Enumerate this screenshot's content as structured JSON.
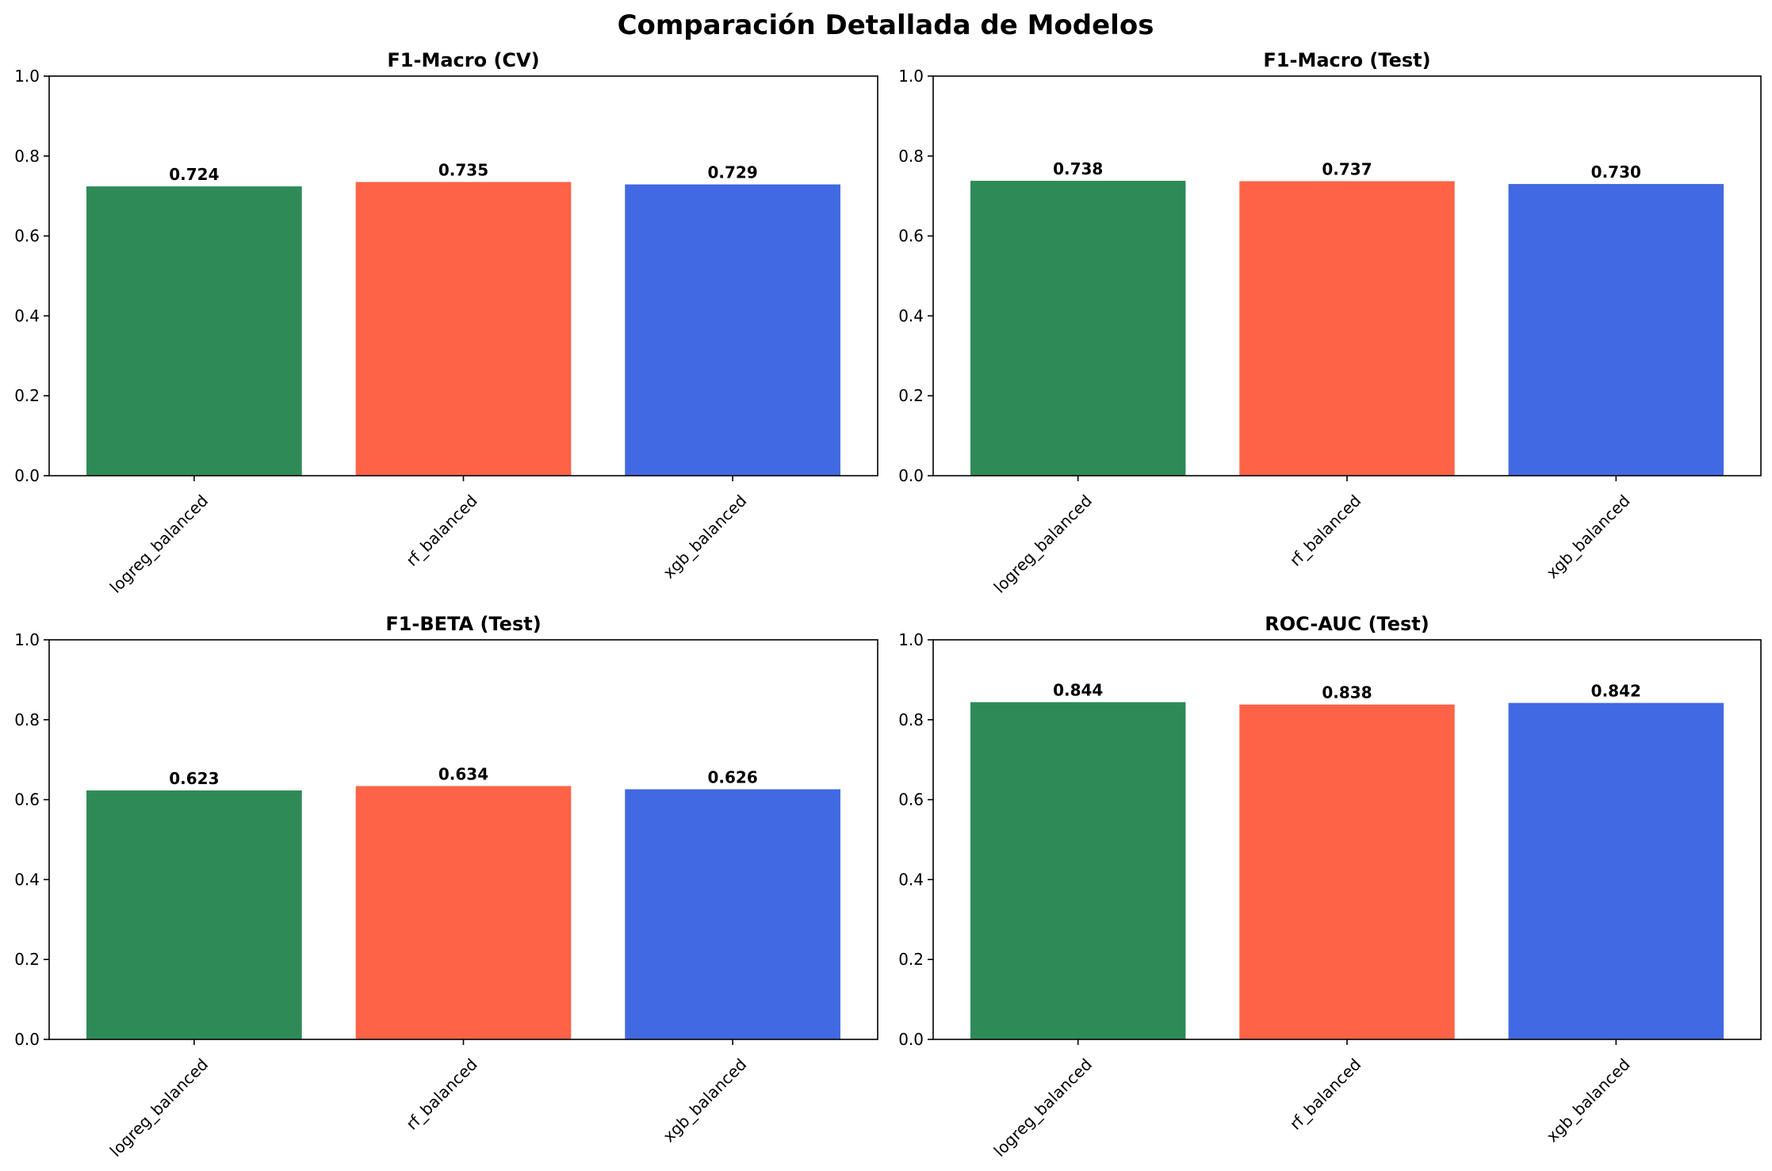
{
  "figure_title": "Comparación Detallada de Modelos",
  "colors": {
    "logreg_balanced": "#2E8B57",
    "rf_balanced": "#FF6347",
    "xgb_balanced": "#4169E1"
  },
  "chart_data": [
    {
      "type": "bar",
      "title": "F1-Macro (CV)",
      "categories": [
        "logreg_balanced",
        "rf_balanced",
        "xgb_balanced"
      ],
      "values": [
        0.724,
        0.735,
        0.729
      ],
      "value_labels": [
        "0.724",
        "0.735",
        "0.729"
      ],
      "ylim": [
        0,
        1
      ],
      "yticks": [
        "0.0",
        "0.2",
        "0.4",
        "0.6",
        "0.8",
        "1.0"
      ],
      "xlabel": "",
      "ylabel": ""
    },
    {
      "type": "bar",
      "title": "F1-Macro (Test)",
      "categories": [
        "logreg_balanced",
        "rf_balanced",
        "xgb_balanced"
      ],
      "values": [
        0.738,
        0.737,
        0.73
      ],
      "value_labels": [
        "0.738",
        "0.737",
        "0.730"
      ],
      "ylim": [
        0,
        1
      ],
      "yticks": [
        "0.0",
        "0.2",
        "0.4",
        "0.6",
        "0.8",
        "1.0"
      ],
      "xlabel": "",
      "ylabel": ""
    },
    {
      "type": "bar",
      "title": "F1-BETA (Test)",
      "categories": [
        "logreg_balanced",
        "rf_balanced",
        "xgb_balanced"
      ],
      "values": [
        0.623,
        0.634,
        0.626
      ],
      "value_labels": [
        "0.623",
        "0.634",
        "0.626"
      ],
      "ylim": [
        0,
        1
      ],
      "yticks": [
        "0.0",
        "0.2",
        "0.4",
        "0.6",
        "0.8",
        "1.0"
      ],
      "xlabel": "",
      "ylabel": ""
    },
    {
      "type": "bar",
      "title": "ROC-AUC (Test)",
      "categories": [
        "logreg_balanced",
        "rf_balanced",
        "xgb_balanced"
      ],
      "values": [
        0.844,
        0.838,
        0.842
      ],
      "value_labels": [
        "0.844",
        "0.838",
        "0.842"
      ],
      "ylim": [
        0,
        1
      ],
      "yticks": [
        "0.0",
        "0.2",
        "0.4",
        "0.6",
        "0.8",
        "1.0"
      ],
      "xlabel": "",
      "ylabel": ""
    }
  ]
}
